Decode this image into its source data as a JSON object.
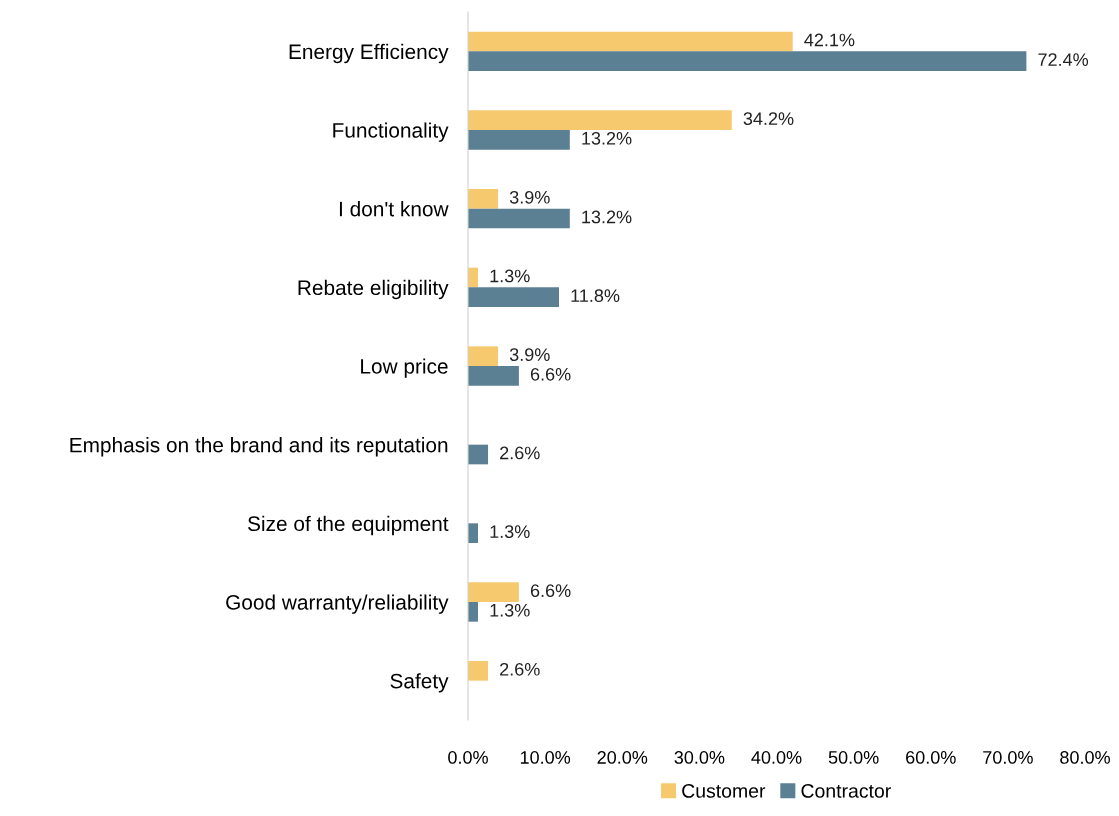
{
  "chart_data": {
    "type": "bar",
    "orientation": "horizontal",
    "categories": [
      "Energy Efficiency",
      "Functionality",
      "I don't know",
      "Rebate eligibility",
      "Low price",
      "Emphasis on the brand and its reputation",
      "Size of the equipment",
      "Good warranty/reliability",
      "Safety"
    ],
    "series": [
      {
        "name": "Customer",
        "color": "#f7c96e",
        "values": [
          42.1,
          34.2,
          3.9,
          1.3,
          3.9,
          null,
          null,
          6.6,
          2.6
        ],
        "value_labels": [
          "42.1%",
          "34.2%",
          "3.9%",
          "1.3%",
          "3.9%",
          null,
          null,
          "6.6%",
          "2.6%"
        ]
      },
      {
        "name": "Contractor",
        "color": "#5b7f93",
        "values": [
          72.4,
          13.2,
          13.2,
          11.8,
          6.6,
          2.6,
          1.3,
          1.3,
          null
        ],
        "value_labels": [
          "72.4%",
          "13.2%",
          "13.2%",
          "11.8%",
          "6.6%",
          "2.6%",
          "1.3%",
          "1.3%",
          null
        ]
      }
    ],
    "xlim": [
      0,
      80
    ],
    "xticks": [
      {
        "value": 0,
        "label": "0.0%"
      },
      {
        "value": 10,
        "label": "10.0%"
      },
      {
        "value": 20,
        "label": "20.0%"
      },
      {
        "value": 30,
        "label": "30.0%"
      },
      {
        "value": 40,
        "label": "40.0%"
      },
      {
        "value": 50,
        "label": "50.0%"
      },
      {
        "value": 60,
        "label": "60.0%"
      },
      {
        "value": 70,
        "label": "70.0%"
      },
      {
        "value": 80,
        "label": "80.0%"
      }
    ],
    "grid": false,
    "legend": "bottom"
  }
}
